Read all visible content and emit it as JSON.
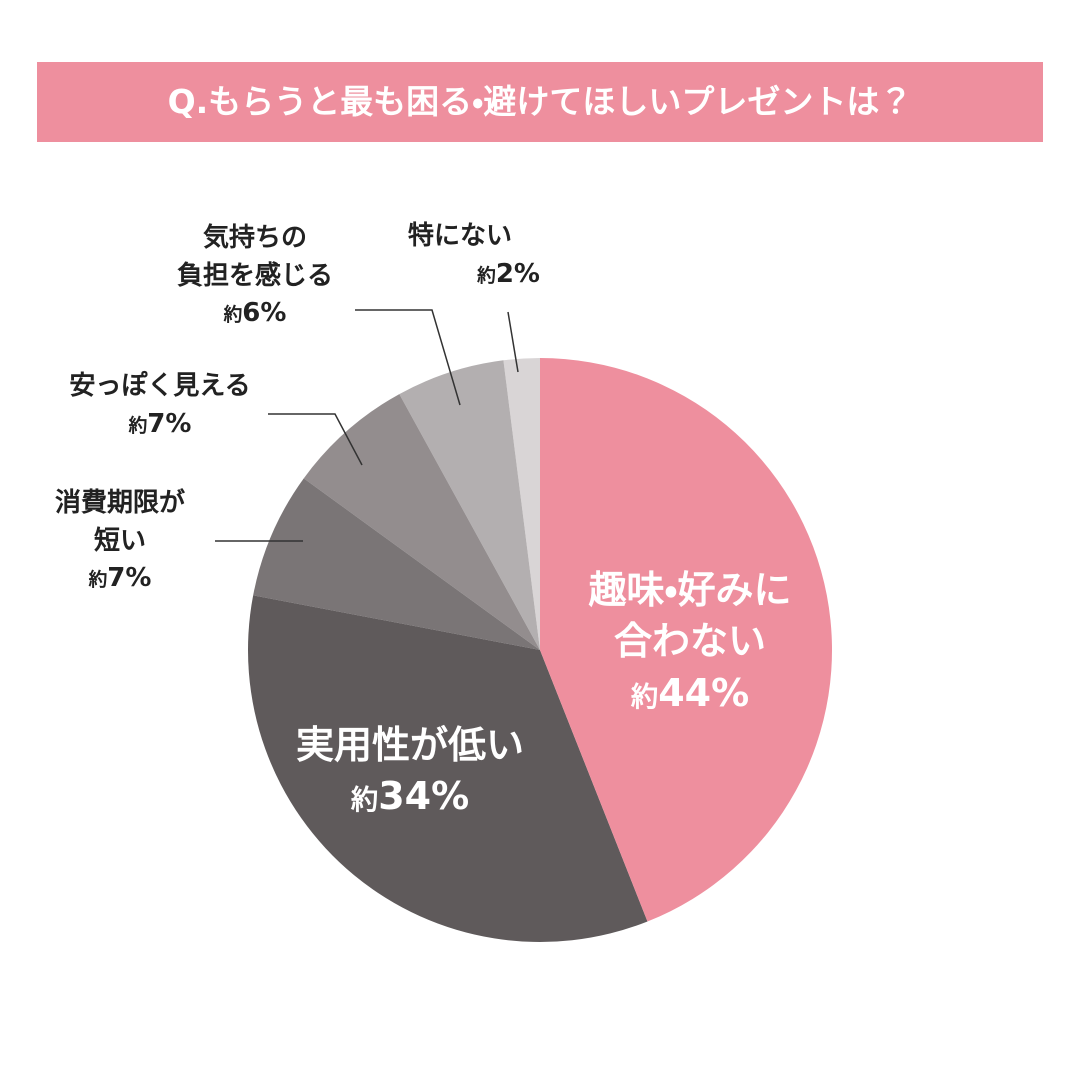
{
  "chart_data": {
    "type": "pie",
    "title": "Q.もらうと最も困る・避けてほしいプレゼントは？",
    "categories": [
      "趣味・好みに\n合わない",
      "実用性が低い",
      "消費期限が\n短い",
      "安っぽく見える",
      "気持ちの\n負担を感じる",
      "特にない"
    ],
    "values": [
      44,
      34,
      7,
      7,
      6,
      2
    ],
    "value_labels": [
      "約44%",
      "約34%",
      "約7%",
      "約7%",
      "約6%",
      "約2%"
    ],
    "colors": [
      "#ee8f9e",
      "#5f5a5b",
      "#7a7576",
      "#938d8e",
      "#b3afb0",
      "#d9d5d6"
    ]
  }
}
